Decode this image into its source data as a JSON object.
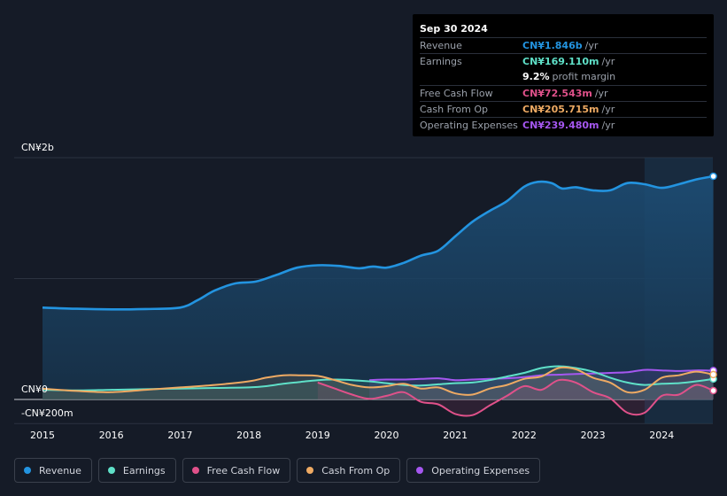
{
  "tooltip": {
    "date": "Sep 30 2024",
    "rows": [
      {
        "label": "Revenue",
        "value": "CN¥1.846b",
        "unit": "/yr",
        "color": "#2394e0"
      },
      {
        "label": "Earnings",
        "value": "CN¥169.110m",
        "unit": "/yr",
        "color": "#5fe0c8"
      },
      {
        "label": "",
        "value": "9.2%",
        "unit": "profit margin",
        "color": "#ffffff"
      },
      {
        "label": "Free Cash Flow",
        "value": "CN¥72.543m",
        "unit": "/yr",
        "color": "#e0518a"
      },
      {
        "label": "Cash From Op",
        "value": "CN¥205.715m",
        "unit": "/yr",
        "color": "#eeaa63"
      },
      {
        "label": "Operating Expenses",
        "value": "CN¥239.480m",
        "unit": "/yr",
        "color": "#a557f0"
      }
    ]
  },
  "legend": [
    {
      "label": "Revenue",
      "color": "#2394e0"
    },
    {
      "label": "Earnings",
      "color": "#5fe0c8"
    },
    {
      "label": "Free Cash Flow",
      "color": "#e0518a"
    },
    {
      "label": "Cash From Op",
      "color": "#eeaa63"
    },
    {
      "label": "Operating Expenses",
      "color": "#a557f0"
    }
  ],
  "chart_data": {
    "type": "area",
    "title": "",
    "y_tick_labels": [
      {
        "label": "CN¥2b",
        "value": 2000
      },
      {
        "label": "CN¥0",
        "value": 0
      },
      {
        "label": "-CN¥200m",
        "value": -200
      }
    ],
    "x_tick_labels": [
      "2015",
      "2016",
      "2017",
      "2018",
      "2019",
      "2020",
      "2021",
      "2022",
      "2023",
      "2024"
    ],
    "ylim": [
      -200,
      2000
    ],
    "xlim": [
      2014.55,
      2024.75
    ],
    "unit": "CN¥m",
    "highlight_from": 2023.75,
    "series": [
      {
        "name": "Revenue",
        "color": "#2394e0",
        "fill": true,
        "x": [
          2015.0,
          2015.5,
          2016.0,
          2016.5,
          2017.0,
          2017.25,
          2017.5,
          2017.8,
          2018.1,
          2018.4,
          2018.7,
          2019.0,
          2019.3,
          2019.6,
          2019.8,
          2020.0,
          2020.25,
          2020.5,
          2020.75,
          2021.0,
          2021.25,
          2021.5,
          2021.75,
          2022.0,
          2022.2,
          2022.4,
          2022.55,
          2022.75,
          2023.0,
          2023.25,
          2023.5,
          2023.75,
          2024.0,
          2024.25,
          2024.5,
          2024.75
        ],
        "y": [
          760,
          750,
          745,
          748,
          760,
          820,
          900,
          960,
          975,
          1030,
          1090,
          1110,
          1105,
          1085,
          1100,
          1090,
          1130,
          1190,
          1230,
          1350,
          1470,
          1560,
          1640,
          1760,
          1800,
          1790,
          1745,
          1755,
          1730,
          1730,
          1790,
          1780,
          1750,
          1780,
          1820,
          1846
        ]
      },
      {
        "name": "Earnings",
        "color": "#5fe0c8",
        "fill": false,
        "x": [
          2015.0,
          2015.5,
          2016.0,
          2016.5,
          2017.0,
          2017.5,
          2018.0,
          2018.25,
          2018.5,
          2018.75,
          2019.0,
          2019.25,
          2019.5,
          2019.75,
          2020.0,
          2020.25,
          2020.5,
          2020.75,
          2021.0,
          2021.25,
          2021.5,
          2021.75,
          2022.0,
          2022.25,
          2022.5,
          2022.75,
          2023.0,
          2023.25,
          2023.5,
          2023.75,
          2024.0,
          2024.25,
          2024.5,
          2024.75
        ],
        "y": [
          80,
          75,
          80,
          85,
          90,
          95,
          100,
          110,
          130,
          145,
          160,
          165,
          160,
          150,
          135,
          120,
          115,
          125,
          135,
          140,
          160,
          190,
          220,
          260,
          275,
          260,
          230,
          180,
          140,
          120,
          130,
          135,
          150,
          169
        ]
      },
      {
        "name": "Free Cash Flow",
        "color": "#e0518a",
        "fill": false,
        "x": [
          2019.0,
          2019.25,
          2019.5,
          2019.75,
          2020.0,
          2020.25,
          2020.5,
          2020.75,
          2021.0,
          2021.25,
          2021.5,
          2021.75,
          2022.0,
          2022.25,
          2022.5,
          2022.75,
          2023.0,
          2023.25,
          2023.5,
          2023.75,
          2024.0,
          2024.25,
          2024.5,
          2024.75
        ],
        "y": [
          140,
          90,
          40,
          5,
          30,
          60,
          -20,
          -40,
          -120,
          -130,
          -50,
          30,
          110,
          80,
          160,
          140,
          60,
          10,
          -110,
          -110,
          30,
          40,
          120,
          73
        ]
      },
      {
        "name": "Cash From Op",
        "color": "#eeaa63",
        "fill": false,
        "x": [
          2015.0,
          2015.5,
          2016.0,
          2016.5,
          2017.0,
          2017.5,
          2018.0,
          2018.25,
          2018.5,
          2018.75,
          2019.0,
          2019.25,
          2019.5,
          2019.75,
          2020.0,
          2020.25,
          2020.5,
          2020.75,
          2021.0,
          2021.25,
          2021.5,
          2021.75,
          2022.0,
          2022.25,
          2022.5,
          2022.75,
          2023.0,
          2023.25,
          2023.5,
          2023.75,
          2024.0,
          2024.25,
          2024.5,
          2024.75
        ],
        "y": [
          90,
          70,
          60,
          80,
          100,
          120,
          150,
          180,
          200,
          200,
          195,
          160,
          120,
          100,
          110,
          130,
          90,
          100,
          50,
          40,
          90,
          120,
          170,
          190,
          260,
          250,
          180,
          140,
          60,
          80,
          180,
          200,
          230,
          206
        ]
      },
      {
        "name": "Operating Expenses",
        "color": "#a557f0",
        "fill": false,
        "x": [
          2019.75,
          2020.0,
          2020.25,
          2020.5,
          2020.75,
          2021.0,
          2021.25,
          2021.5,
          2021.75,
          2022.0,
          2022.25,
          2022.5,
          2022.75,
          2023.0,
          2023.25,
          2023.5,
          2023.75,
          2024.0,
          2024.25,
          2024.5,
          2024.75
        ],
        "y": [
          160,
          165,
          165,
          170,
          175,
          160,
          165,
          170,
          175,
          185,
          200,
          205,
          210,
          215,
          220,
          225,
          245,
          240,
          235,
          240,
          239
        ]
      }
    ]
  }
}
